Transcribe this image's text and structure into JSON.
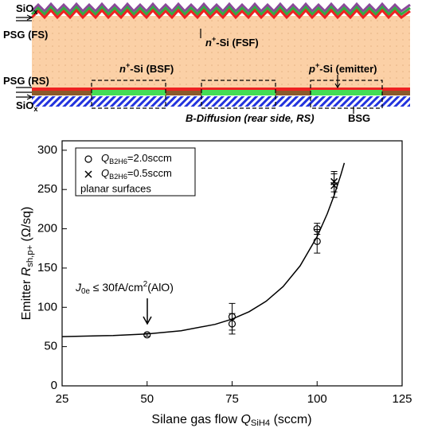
{
  "diagram": {
    "labels": [
      [
        "SiO",
        "x"
      ],
      [
        "PSG (FS)"
      ],
      [
        "n",
        "+",
        "-Si (FSF)"
      ],
      [
        "n",
        "+",
        "-Si (BSF)"
      ],
      [
        "p",
        "+",
        "-Si (emitter)"
      ],
      [
        "PSG (RS)"
      ],
      [
        "SiO",
        "x"
      ],
      [
        "B-Diffusion (rear side, RS)"
      ],
      [
        "BSG"
      ]
    ]
  },
  "chart_data": {
    "type": "scatter",
    "xlabel": [
      "Silane gas flow ",
      "Q",
      "SiH4",
      " (sccm)"
    ],
    "ylabel": [
      "Emitter ",
      "R",
      "sh,p+",
      " (Ω/sq)"
    ],
    "xlim": [
      25,
      125
    ],
    "xticks": [
      25,
      50,
      75,
      100,
      125
    ],
    "ylim": [
      0,
      312
    ],
    "yticks": [
      0,
      50,
      100,
      150,
      200,
      250,
      300
    ],
    "series": [
      {
        "name": [
          "Q",
          "B2H6",
          "=2.0sccm"
        ],
        "marker": "circle",
        "color": "#000000",
        "x": [
          50,
          75,
          75,
          100,
          100
        ],
        "values": [
          65,
          88,
          79,
          200,
          184
        ],
        "errors": [
          2,
          17,
          13,
          7,
          15
        ]
      },
      {
        "name": [
          "Q",
          "B2H6",
          "=0.5sccm"
        ],
        "marker": "cross",
        "color": "#000000",
        "x": [
          105,
          105
        ],
        "values": [
          260,
          255
        ],
        "errors": [
          13,
          15
        ]
      }
    ],
    "fit": {
      "type": "line",
      "color": "#000000",
      "x": [
        25,
        40,
        50,
        60,
        70,
        75,
        80,
        85,
        90,
        95,
        100,
        103,
        105,
        107,
        108
      ],
      "values": [
        62.7,
        64.1,
        66.1,
        70.2,
        78.3,
        85,
        94.4,
        107.7,
        126.4,
        152.8,
        190,
        219.3,
        242.5,
        269,
        283.8
      ]
    },
    "legend_note": "planar surfaces",
    "annotation": [
      "J",
      "0e",
      " ≤ 30fA/cm",
      "2",
      "(AlO)"
    ]
  }
}
